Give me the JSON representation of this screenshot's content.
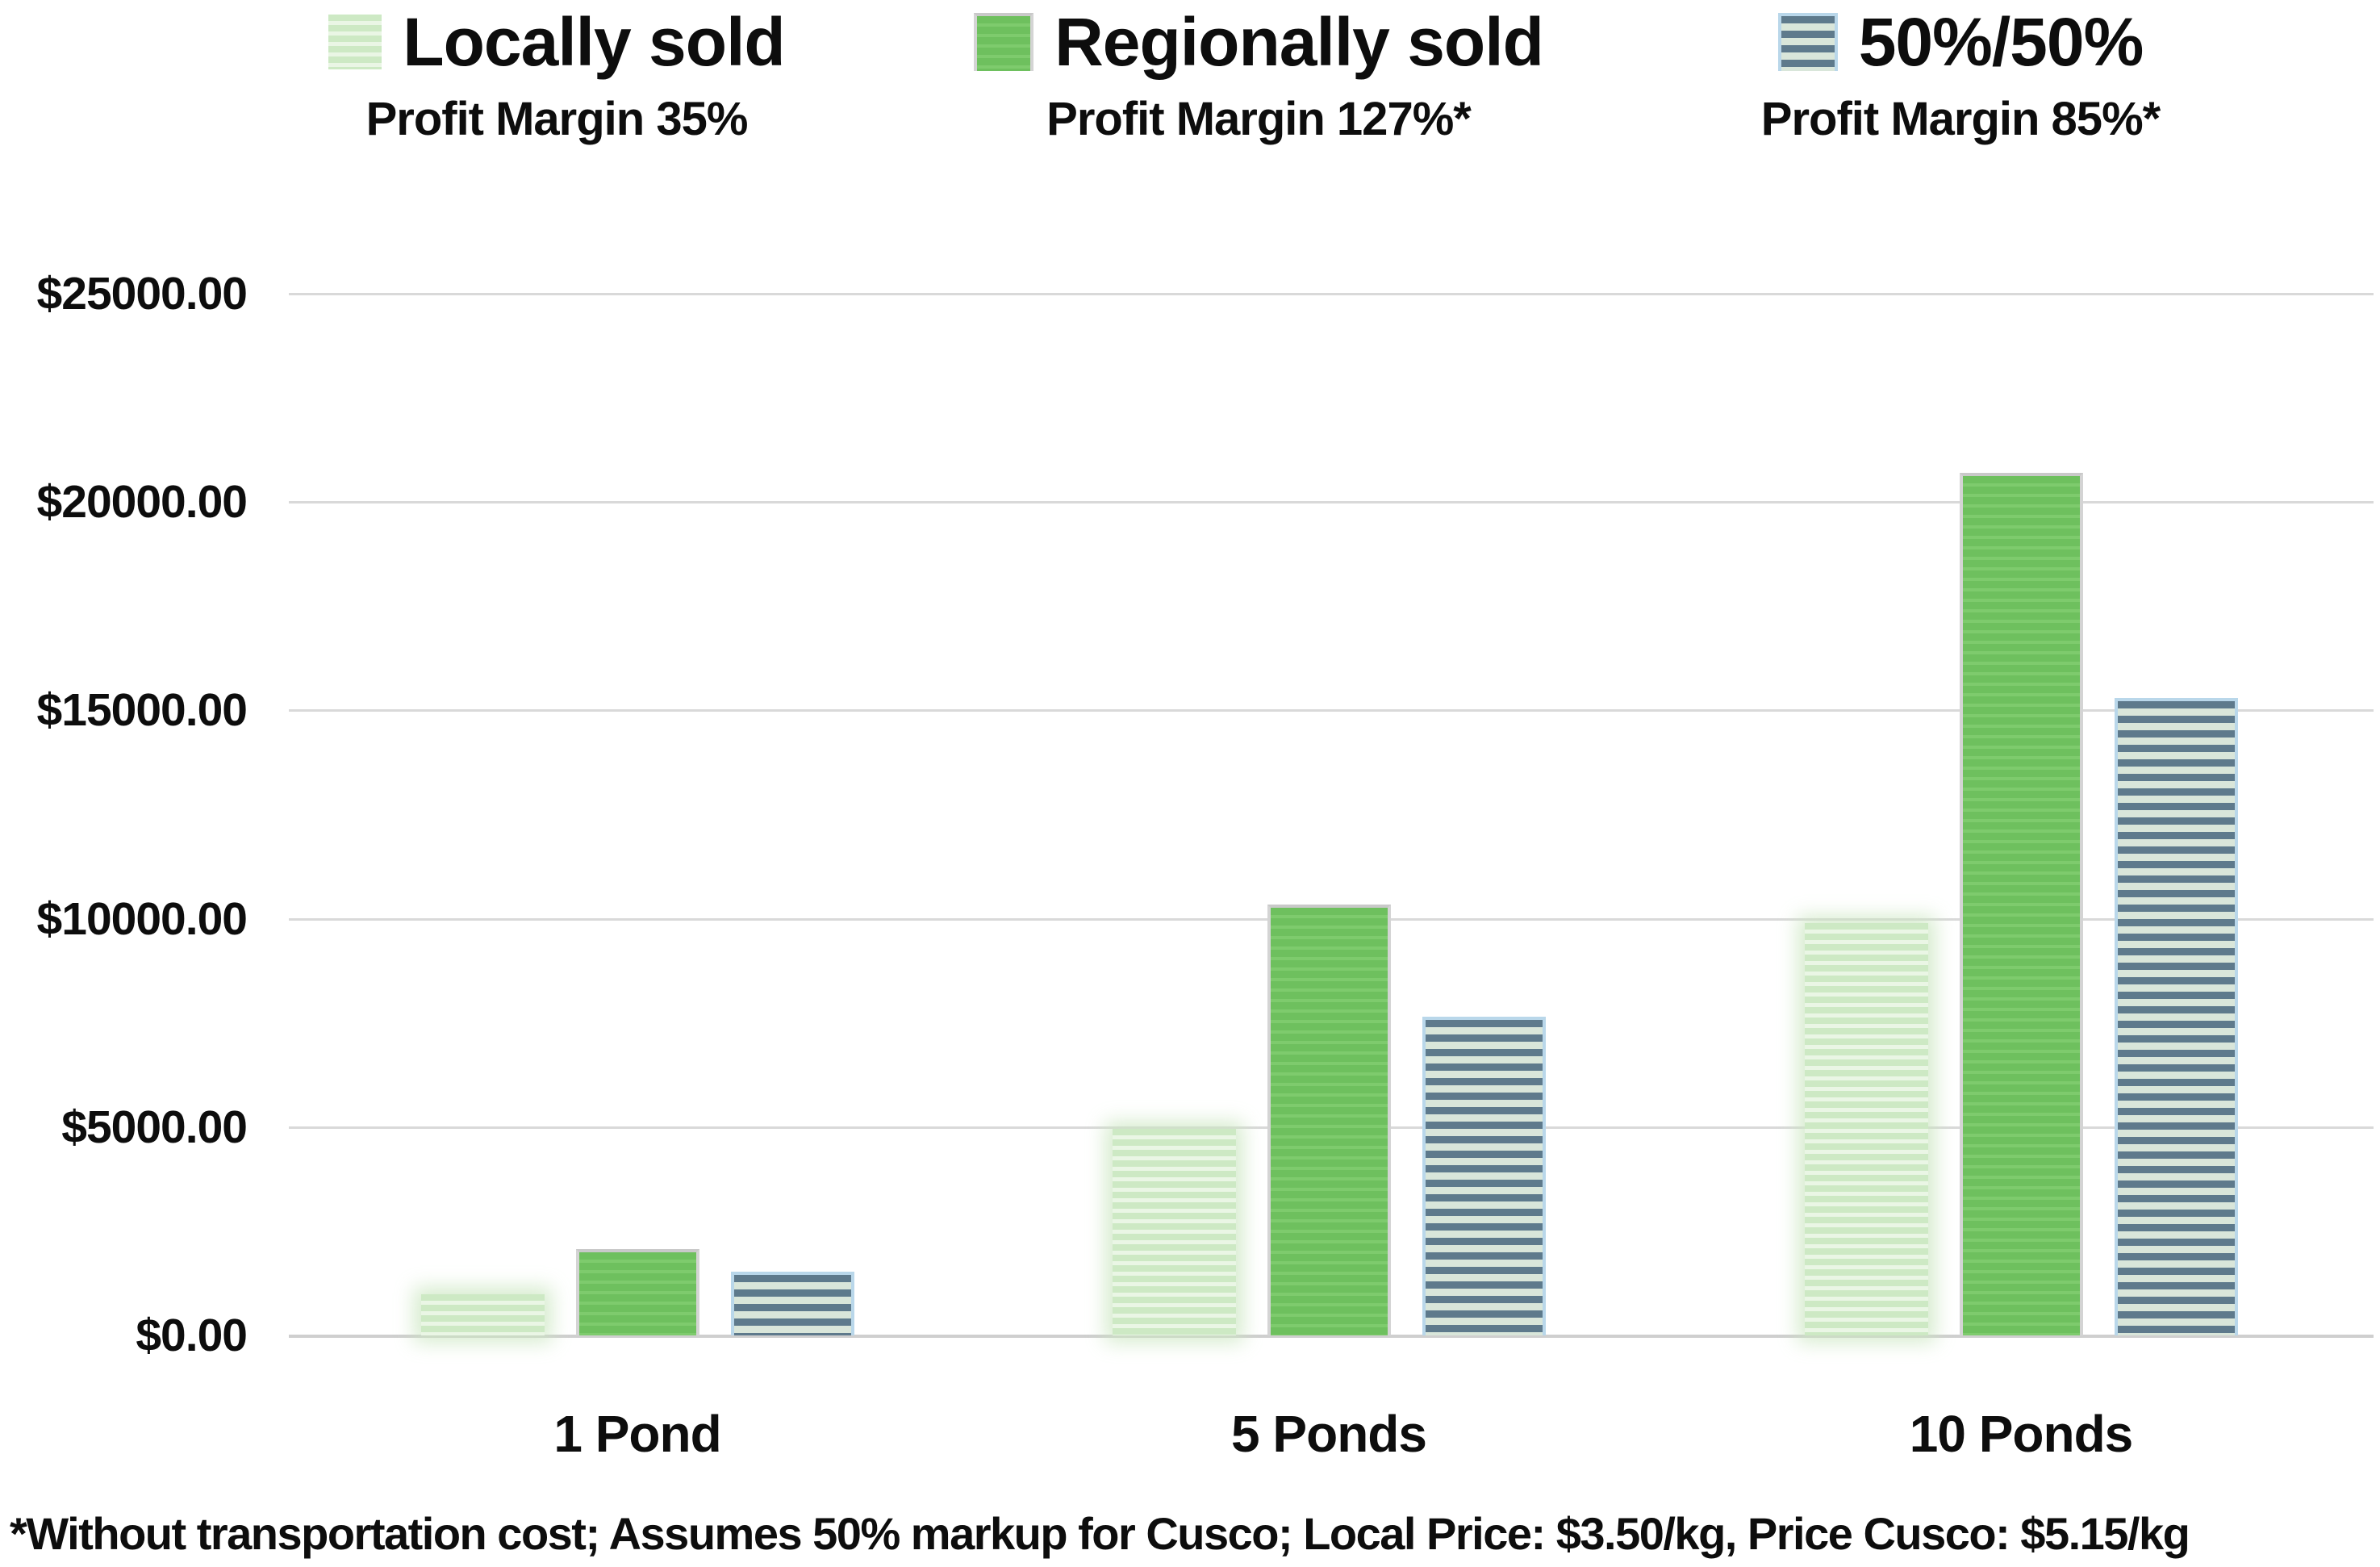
{
  "legend": {
    "items": [
      {
        "label": "Locally sold",
        "subtitle": "Profit Margin 35%",
        "series": "local"
      },
      {
        "label": "Regionally sold",
        "subtitle": "Profit Margin 127%*",
        "series": "regional"
      },
      {
        "label": "50%/50%",
        "subtitle": "Profit Margin 85%*",
        "series": "fifty"
      }
    ]
  },
  "footnote": "*Without transportation cost; Assumes 50% markup for Cusco; Local Price: $3.50/kg, Price Cusco: $5.15/kg",
  "colors": {
    "local_stripe_a": "#cde9c4",
    "local_stripe_b": "#eaf6e5",
    "regional_stripe_a": "#6ec05e",
    "regional_stripe_b": "#7ecb6d",
    "fifty_stripe_a": "#5e7a8c",
    "fifty_stripe_b": "#d9e6da",
    "fifty_border": "#b9d7ea",
    "gridline": "#d9d9d9",
    "text": "#0d0d0d"
  },
  "chart_data": {
    "type": "bar",
    "title": "",
    "categories": [
      "1 Pond",
      "5 Ponds",
      "10 Ponds"
    ],
    "series": [
      {
        "name": "Locally sold",
        "key": "local",
        "values": [
          990,
          4950,
          9900
        ]
      },
      {
        "name": "Regionally sold",
        "key": "regional",
        "values": [
          2070,
          10350,
          20700
        ]
      },
      {
        "name": "50%/50%",
        "key": "fifty",
        "values": [
          1530,
          7650,
          15300
        ]
      }
    ],
    "y_ticks": [
      "$25000.00",
      "$20000.00",
      "$15000.00",
      "$10000.00",
      "$5000.00",
      "$0.00"
    ],
    "ylim": [
      0,
      25000
    ],
    "xlabel": "",
    "ylabel": "",
    "grid": true,
    "legend_position": "top"
  }
}
